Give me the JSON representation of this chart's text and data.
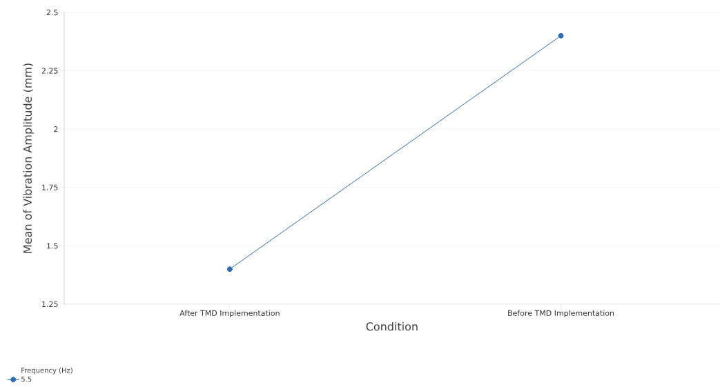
{
  "chart_data": {
    "type": "line",
    "xlabel": "Condition",
    "ylabel": "Mean of Vibration Amplitude (mm)",
    "legend_title": "Frequency (Hz)",
    "categories": [
      "After TMD Implementation",
      "Before TMD Implementation"
    ],
    "series": [
      {
        "name": "5.5",
        "color": "#2b6cb5",
        "values": [
          1.4,
          2.4
        ]
      }
    ],
    "ylim": [
      1.25,
      2.5
    ],
    "yticks": [
      1.25,
      1.5,
      1.75,
      2,
      2.25,
      2.5
    ],
    "grid": "y",
    "legend": "bottom left",
    "marker": "circle",
    "line_style": "solid"
  }
}
